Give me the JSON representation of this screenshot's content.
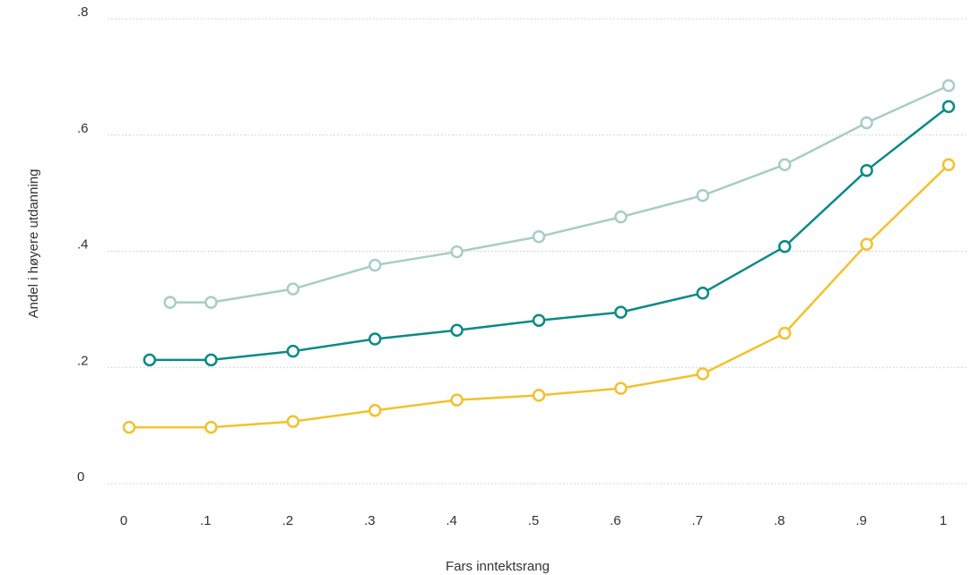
{
  "chart_data": {
    "type": "line",
    "xlabel": "Fars inntektsrang",
    "ylabel": "Andel i høyere utdanning",
    "xlim": [
      0,
      1
    ],
    "ylim": [
      0,
      0.8
    ],
    "x_ticks": [
      {
        "value": 0,
        "label": "0"
      },
      {
        "value": 0.1,
        "label": ".1"
      },
      {
        "value": 0.2,
        "label": ".2"
      },
      {
        "value": 0.3,
        "label": ".3"
      },
      {
        "value": 0.4,
        "label": ".4"
      },
      {
        "value": 0.5,
        "label": ".5"
      },
      {
        "value": 0.6,
        "label": ".6"
      },
      {
        "value": 0.7,
        "label": ".7"
      },
      {
        "value": 0.8,
        "label": ".8"
      },
      {
        "value": 0.9,
        "label": ".9"
      },
      {
        "value": 1,
        "label": "1"
      }
    ],
    "y_ticks": [
      {
        "value": 0,
        "label": "0"
      },
      {
        "value": 0.2,
        "label": ".2"
      },
      {
        "value": 0.4,
        "label": ".4"
      },
      {
        "value": 0.6,
        "label": ".6"
      },
      {
        "value": 0.8,
        "label": ".8"
      }
    ],
    "grid": "horizontal",
    "series": [
      {
        "color": "#a9cdc3",
        "marker_fill": "#ffffff",
        "x": [
          0.05,
          0.1,
          0.2,
          0.3,
          0.4,
          0.5,
          0.6,
          0.7,
          0.8,
          0.9,
          1.0
        ],
        "y": [
          0.312,
          0.312,
          0.335,
          0.376,
          0.399,
          0.425,
          0.459,
          0.496,
          0.549,
          0.621,
          0.685
        ]
      },
      {
        "color": "#0b8a86",
        "marker_fill": "#ffffff",
        "x": [
          0.025,
          0.1,
          0.2,
          0.3,
          0.4,
          0.5,
          0.6,
          0.7,
          0.8,
          0.9,
          1.0
        ],
        "y": [
          0.213,
          0.213,
          0.228,
          0.249,
          0.264,
          0.281,
          0.295,
          0.328,
          0.408,
          0.539,
          0.649
        ]
      },
      {
        "color": "#f2c12e",
        "marker_fill": "#ffffff",
        "x": [
          0.0,
          0.1,
          0.2,
          0.3,
          0.4,
          0.5,
          0.6,
          0.7,
          0.8,
          0.9,
          1.0
        ],
        "y": [
          0.097,
          0.097,
          0.107,
          0.126,
          0.144,
          0.152,
          0.164,
          0.189,
          0.259,
          0.412,
          0.549
        ]
      }
    ]
  }
}
